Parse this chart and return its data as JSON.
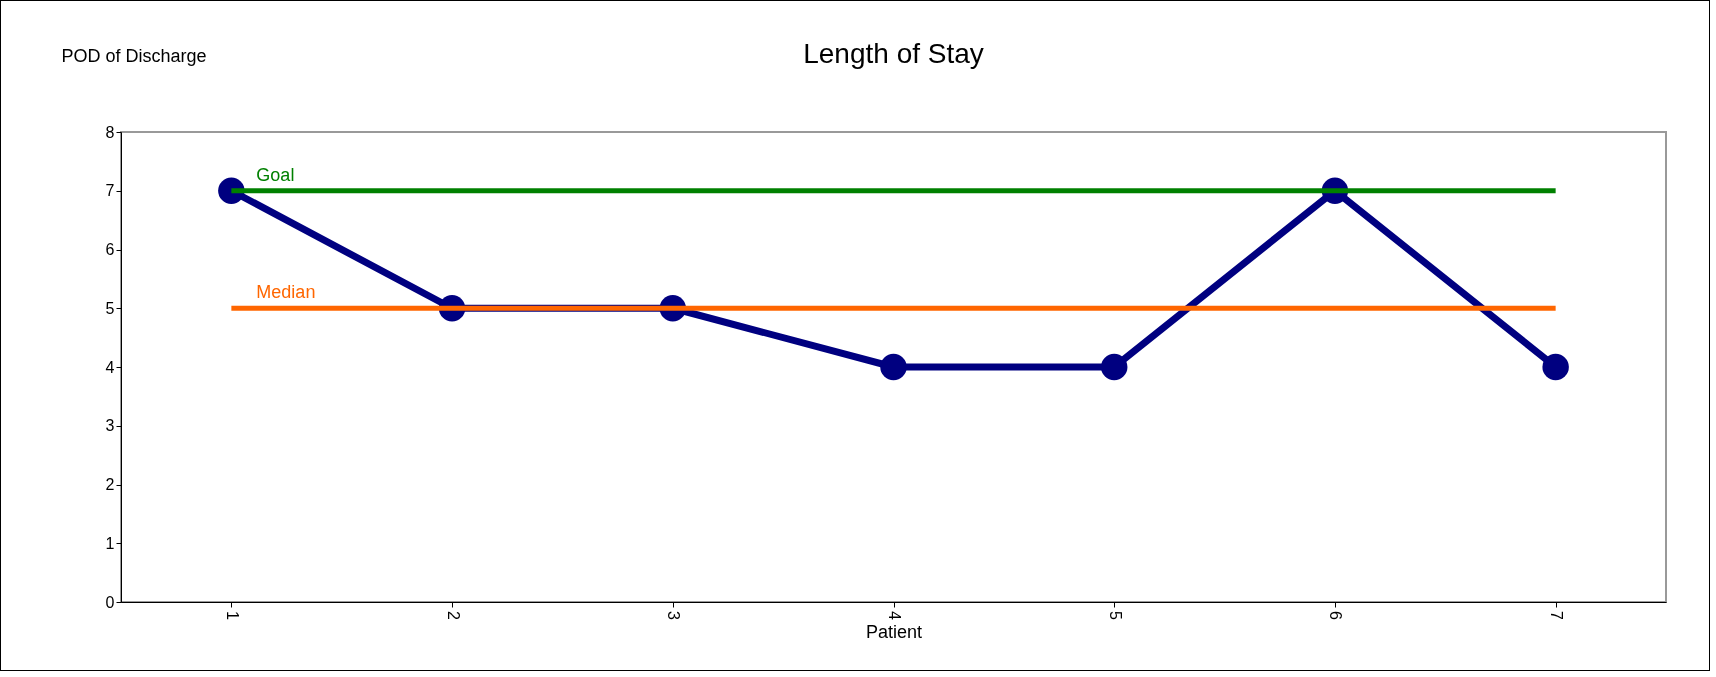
{
  "chart_data": {
    "type": "line",
    "title": "Length of Stay",
    "xlabel": "Patient",
    "ylabel": "POD of Discharge",
    "categories": [
      "1",
      "2",
      "3",
      "4",
      "5",
      "6",
      "7"
    ],
    "series": [
      {
        "color": "#000080",
        "values": [
          7,
          5,
          5,
          4,
          4,
          7,
          4
        ]
      }
    ],
    "ylim": [
      0,
      8
    ],
    "yticks": [
      0,
      1,
      2,
      3,
      4,
      5,
      6,
      7,
      8
    ],
    "ref_lines": [
      {
        "axis": "y",
        "value": 7,
        "label": "Goal",
        "color": "#008000"
      },
      {
        "axis": "y",
        "value": 5,
        "label": "Median",
        "color": "#ff6600"
      }
    ],
    "marker": "circle",
    "grid": false,
    "legend": false
  }
}
